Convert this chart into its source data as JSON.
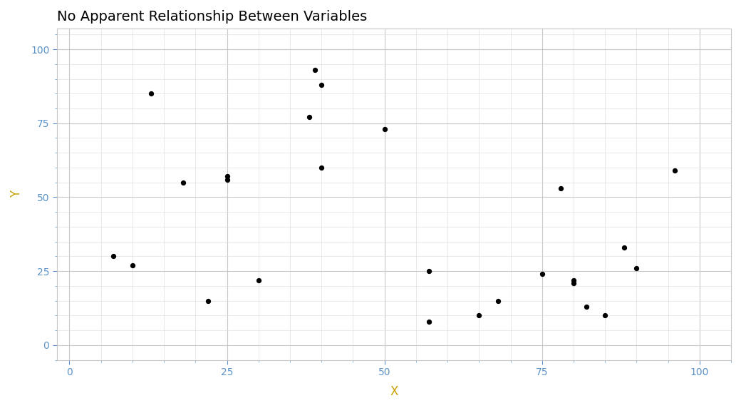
{
  "title": "No Apparent Relationship Between Variables",
  "xlabel": "X",
  "ylabel": "Y",
  "xlim": [
    -2,
    105
  ],
  "ylim": [
    -5,
    107
  ],
  "xticks": [
    0,
    25,
    50,
    75,
    100
  ],
  "yticks": [
    0,
    25,
    50,
    75,
    100
  ],
  "x": [
    7,
    10,
    13,
    18,
    22,
    25,
    25,
    30,
    38,
    39,
    40,
    40,
    50,
    57,
    57,
    65,
    68,
    75,
    78,
    80,
    80,
    82,
    85,
    88,
    90,
    96
  ],
  "y": [
    30,
    27,
    85,
    55,
    15,
    57,
    56,
    22,
    77,
    93,
    88,
    60,
    73,
    25,
    8,
    10,
    15,
    24,
    53,
    21,
    22,
    13,
    10,
    33,
    26,
    59
  ],
  "point_color": "#000000",
  "point_size": 18,
  "background_color": "#ffffff",
  "grid_color": "#c8c8c8",
  "minor_grid_color": "#e0e0e0",
  "title_fontsize": 14,
  "label_fontsize": 12,
  "tick_fontsize": 10,
  "tick_color": "#5b92c8",
  "axis_label_color": "#c8a000",
  "spine_color": "#c8c8c8"
}
